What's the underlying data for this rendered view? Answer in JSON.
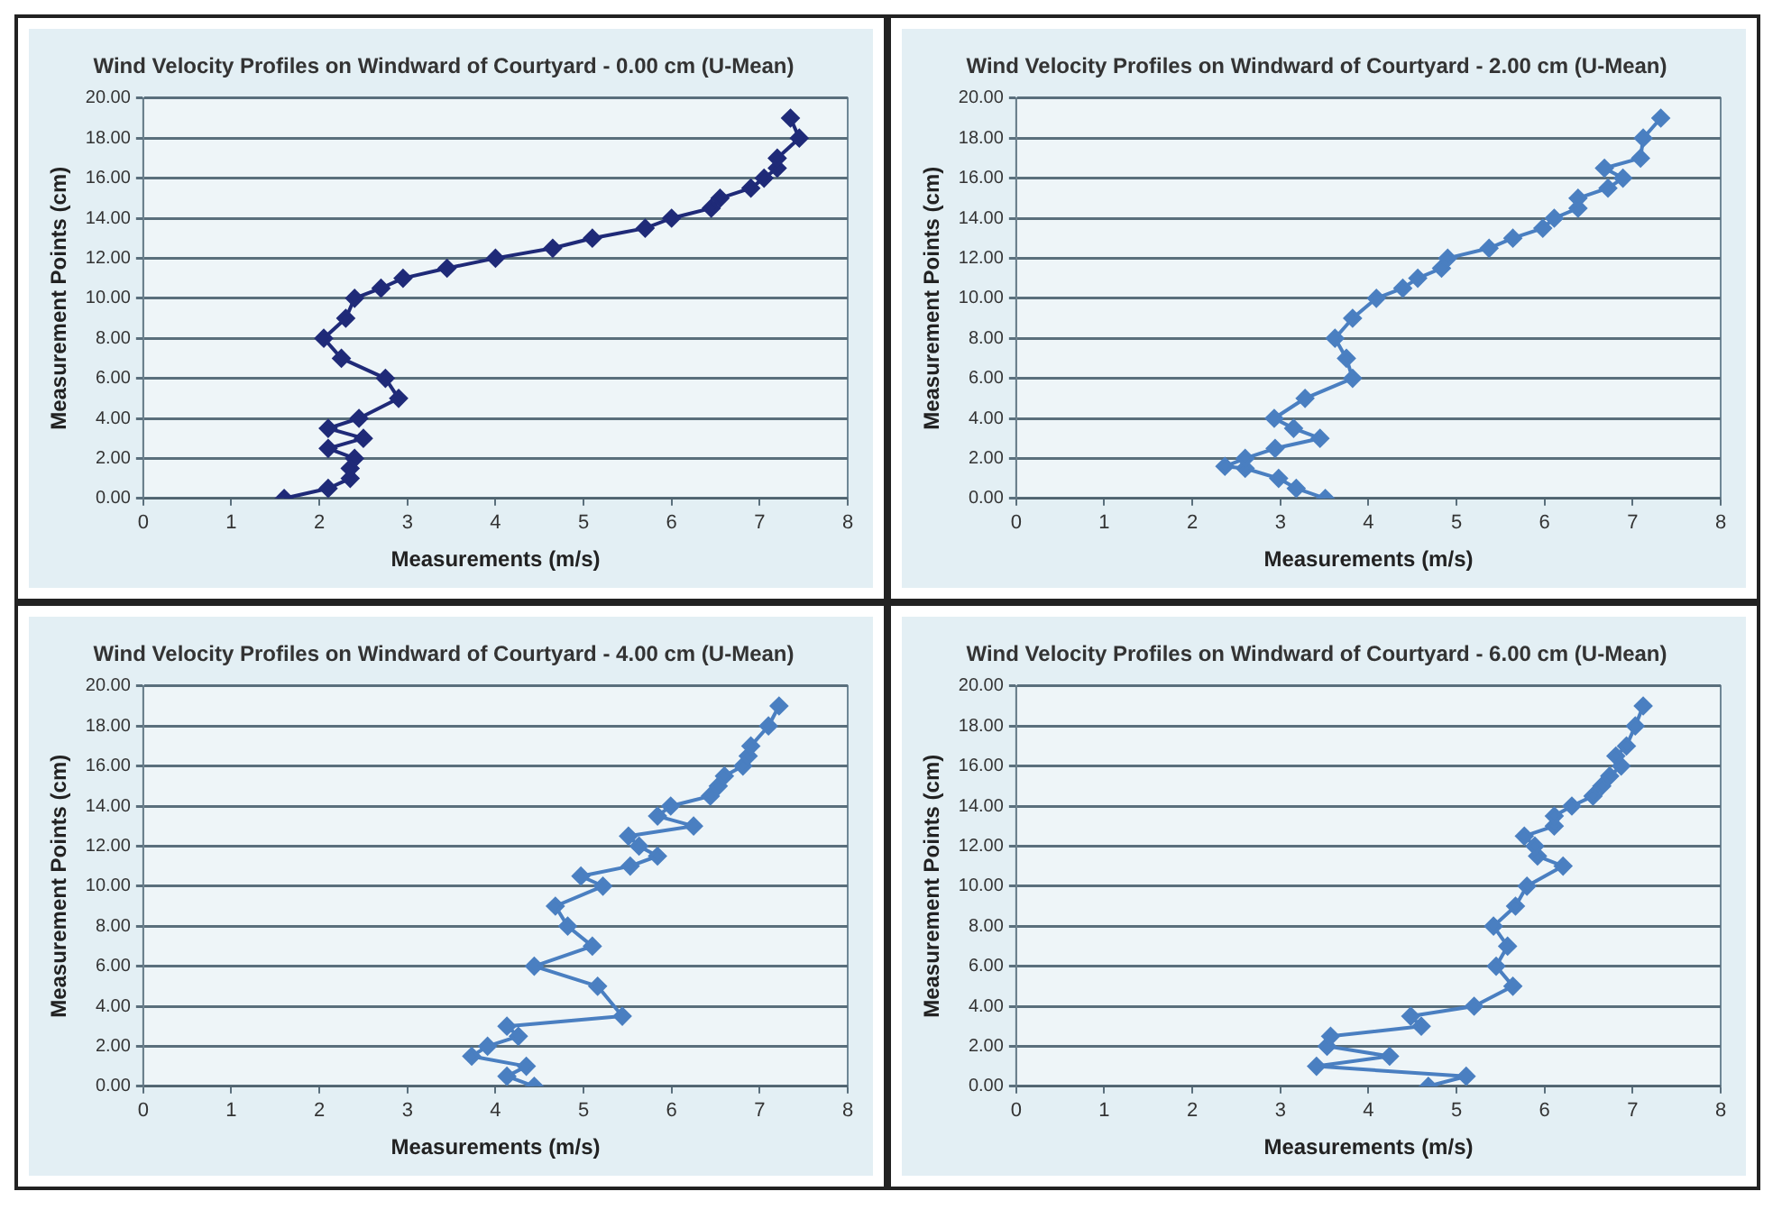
{
  "chart_data": [
    {
      "type": "line",
      "title": "Wind Velocity Profiles on Windward of Courtyard - 0.00 cm (U-Mean)",
      "xlabel": "Measurements (m/s)",
      "ylabel": "Measurement Points (cm)",
      "marker": "diamond",
      "grid": "y",
      "xlim": [
        0,
        8
      ],
      "xticks": [
        0,
        1,
        2,
        3,
        4,
        5,
        6,
        7,
        8
      ],
      "ylim": [
        0,
        20
      ],
      "yticks": [
        {
          "value": 0,
          "label": "0.00"
        },
        {
          "value": 2,
          "label": "2.00"
        },
        {
          "value": 4,
          "label": "4.00"
        },
        {
          "value": 6,
          "label": "6.00"
        },
        {
          "value": 8,
          "label": "8.00"
        },
        {
          "value": 10,
          "label": "10.00"
        },
        {
          "value": 12,
          "label": "12.00"
        },
        {
          "value": 14,
          "label": "14.00"
        },
        {
          "value": 16,
          "label": "16.00"
        },
        {
          "value": 18,
          "label": "18.00"
        },
        {
          "value": 20,
          "label": "20.00"
        }
      ],
      "series": [
        {
          "color": "#1f2a78",
          "x": [
            1.6,
            2.1,
            2.35,
            2.35,
            2.4,
            2.1,
            2.5,
            2.1,
            2.45,
            2.9,
            2.75,
            2.25,
            2.05,
            2.3,
            2.4,
            2.7,
            2.95,
            3.45,
            4,
            4.65,
            5.1,
            5.7,
            6,
            6.45,
            6.55,
            6.9,
            7.05,
            7.2,
            7.2,
            7.45,
            7.35
          ],
          "values": [
            0,
            0.5,
            1,
            1.5,
            2,
            2.5,
            3,
            3.5,
            4,
            5,
            6,
            7,
            8,
            9,
            10,
            10.5,
            11,
            11.5,
            12,
            12.5,
            13,
            13.5,
            14,
            14.5,
            15,
            15.5,
            16,
            16.5,
            17,
            18,
            19
          ]
        }
      ]
    },
    {
      "type": "line",
      "title": "Wind Velocity Profiles on Windward of Courtyard - 2.00 cm (U-Mean)",
      "xlabel": "Measurements (m/s)",
      "ylabel": "Measurement Points (cm)",
      "marker": "diamond",
      "grid": "y",
      "xlim": [
        0,
        8
      ],
      "xticks": [
        0,
        1,
        2,
        3,
        4,
        5,
        6,
        7,
        8
      ],
      "ylim": [
        0,
        20
      ],
      "yticks": [
        {
          "value": 0,
          "label": "0.00"
        },
        {
          "value": 2,
          "label": "2.00"
        },
        {
          "value": 4,
          "label": "4.00"
        },
        {
          "value": 6,
          "label": "6.00"
        },
        {
          "value": 8,
          "label": "8.00"
        },
        {
          "value": 10,
          "label": "10.00"
        },
        {
          "value": 12,
          "label": "12.00"
        },
        {
          "value": 14,
          "label": "14.00"
        },
        {
          "value": 16,
          "label": "16.00"
        },
        {
          "value": 18,
          "label": "18.00"
        },
        {
          "value": 20,
          "label": "20.00"
        }
      ],
      "series": [
        {
          "color": "#4a7fc1",
          "x": [
            3.51,
            3.18,
            2.98,
            2.6,
            2.37,
            2.6,
            2.94,
            3.45,
            3.15,
            2.93,
            3.28,
            3.82,
            3.75,
            3.62,
            3.82,
            4.09,
            4.39,
            4.56,
            4.83,
            4.9,
            5.37,
            5.64,
            5.98,
            6.11,
            6.38,
            6.38,
            6.72,
            6.89,
            6.68,
            7.09,
            7.12,
            7.32
          ],
          "values": [
            0,
            0.5,
            1,
            1.5,
            1.6,
            2,
            2.5,
            3,
            3.5,
            4,
            5,
            6,
            7,
            8,
            9,
            10,
            10.5,
            11,
            11.5,
            12,
            12.5,
            13,
            13.5,
            14,
            14.5,
            15,
            15.5,
            16,
            16.5,
            17,
            18,
            19
          ]
        }
      ]
    },
    {
      "type": "line",
      "title": "Wind Velocity Profiles on Windward of Courtyard - 4.00 cm (U-Mean)",
      "xlabel": "Measurements (m/s)",
      "ylabel": "Measurement Points (cm)",
      "marker": "diamond",
      "grid": "y",
      "xlim": [
        0,
        8
      ],
      "xticks": [
        0,
        1,
        2,
        3,
        4,
        5,
        6,
        7,
        8
      ],
      "ylim": [
        0,
        20
      ],
      "yticks": [
        {
          "value": 0,
          "label": "0.00"
        },
        {
          "value": 2,
          "label": "2.00"
        },
        {
          "value": 4,
          "label": "4.00"
        },
        {
          "value": 6,
          "label": "6.00"
        },
        {
          "value": 8,
          "label": "8.00"
        },
        {
          "value": 10,
          "label": "10.00"
        },
        {
          "value": 12,
          "label": "12.00"
        },
        {
          "value": 14,
          "label": "14.00"
        },
        {
          "value": 16,
          "label": "16.00"
        },
        {
          "value": 18,
          "label": "18.00"
        },
        {
          "value": 20,
          "label": "20.00"
        }
      ],
      "series": [
        {
          "color": "#4a7fc1",
          "x": [
            4.44,
            4.13,
            4.35,
            3.73,
            3.91,
            4.26,
            4.13,
            5.44,
            5.16,
            4.44,
            5.1,
            4.82,
            4.68,
            5.22,
            4.97,
            5.53,
            5.84,
            5.63,
            5.51,
            6.25,
            5.84,
            5.99,
            6.44,
            6.53,
            6.6,
            6.81,
            6.87,
            6.9,
            7.1,
            7.22
          ],
          "values": [
            0,
            0.5,
            1,
            1.5,
            2,
            2.5,
            3,
            3.5,
            5,
            6,
            7,
            8,
            9,
            10,
            10.5,
            11,
            11.5,
            12,
            12.5,
            13,
            13.5,
            14,
            14.5,
            15,
            15.5,
            16,
            16.5,
            17,
            18,
            19
          ]
        }
      ]
    },
    {
      "type": "line",
      "title": "Wind Velocity Profiles on Windward of Courtyard - 6.00 cm (U-Mean)",
      "xlabel": "Measurements (m/s)",
      "ylabel": "Measurement Points (cm)",
      "marker": "diamond",
      "grid": "y",
      "xlim": [
        0,
        8
      ],
      "xticks": [
        0,
        1,
        2,
        3,
        4,
        5,
        6,
        7,
        8
      ],
      "ylim": [
        0,
        20
      ],
      "yticks": [
        {
          "value": 0,
          "label": "0.00"
        },
        {
          "value": 2,
          "label": "2.00"
        },
        {
          "value": 4,
          "label": "4.00"
        },
        {
          "value": 6,
          "label": "6.00"
        },
        {
          "value": 8,
          "label": "8.00"
        },
        {
          "value": 10,
          "label": "10.00"
        },
        {
          "value": 12,
          "label": "12.00"
        },
        {
          "value": 14,
          "label": "14.00"
        },
        {
          "value": 16,
          "label": "16.00"
        },
        {
          "value": 18,
          "label": "18.00"
        },
        {
          "value": 20,
          "label": "20.00"
        }
      ],
      "series": [
        {
          "color": "#4a7fc1",
          "x": [
            4.68,
            5.11,
            3.41,
            4.24,
            3.53,
            3.57,
            4.6,
            4.48,
            5.2,
            5.64,
            5.45,
            5.58,
            5.42,
            5.67,
            5.8,
            6.21,
            5.92,
            5.89,
            5.77,
            6.11,
            6.11,
            6.31,
            6.55,
            6.65,
            6.74,
            6.87,
            6.81,
            6.93,
            7.03,
            7.12
          ],
          "values": [
            0,
            0.5,
            1,
            1.5,
            2,
            2.5,
            3,
            3.5,
            4,
            5,
            6,
            7,
            8,
            9,
            10,
            11,
            11.5,
            12,
            12.5,
            13,
            13.5,
            14,
            14.5,
            15,
            15.5,
            16,
            16.5,
            17,
            18,
            19
          ]
        }
      ]
    }
  ]
}
